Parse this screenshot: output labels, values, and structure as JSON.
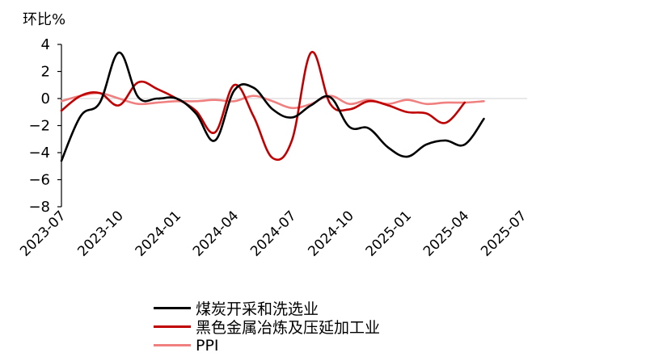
{
  "chart_data": {
    "type": "line",
    "ylabel": "环比%",
    "ylim": [
      -8,
      4
    ],
    "yticks": [
      4,
      2,
      0,
      -2,
      -4,
      -6,
      -8
    ],
    "ytick_labels": [
      "4",
      "2",
      "0",
      "−2",
      "−4",
      "−6",
      "−8"
    ],
    "categories": [
      "2023-07",
      "2023-08",
      "2023-09",
      "2023-10",
      "2023-11",
      "2023-12",
      "2024-01",
      "2024-02",
      "2024-03",
      "2024-04",
      "2024-05",
      "2024-06",
      "2024-07",
      "2024-08",
      "2024-09",
      "2024-10",
      "2024-11",
      "2024-12",
      "2025-01",
      "2025-02",
      "2025-03",
      "2025-04",
      "2025-05",
      "2025-06",
      "2025-07"
    ],
    "xtick_labels": [
      "2023-07",
      "2023-10",
      "2024-01",
      "2024-04",
      "2024-07",
      "2024-10",
      "2025-01",
      "2025-04",
      "2025-07"
    ],
    "grid": false,
    "legend_position": "bottom",
    "series": [
      {
        "name": "煤炭开采和洗选业",
        "color": "#000000",
        "values": [
          -4.6,
          -1.3,
          -0.3,
          3.4,
          0.1,
          0.0,
          0.0,
          -1.1,
          -3.1,
          0.6,
          0.8,
          -0.8,
          -1.4,
          -0.5,
          0.1,
          -2.1,
          -2.2,
          -3.6,
          -4.3,
          -3.4,
          -3.1,
          -3.4,
          -1.5,
          null,
          null
        ]
      },
      {
        "name": "黑色金属冶炼及压延加工业",
        "color": "#c00000",
        "values": [
          -0.9,
          0.2,
          0.4,
          -0.5,
          1.2,
          0.7,
          0.0,
          -0.9,
          -2.5,
          1.0,
          -1.3,
          -4.4,
          -3.1,
          3.4,
          -0.4,
          -0.8,
          -0.2,
          -0.5,
          -1.0,
          -1.1,
          -1.8,
          -0.3,
          null,
          null,
          null
        ]
      },
      {
        "name": "PPI",
        "color": "#f08080",
        "values": [
          -0.2,
          0.2,
          0.4,
          0.0,
          -0.4,
          -0.3,
          -0.2,
          -0.2,
          -0.1,
          -0.2,
          0.2,
          -0.2,
          -0.7,
          -0.4,
          0.2,
          -0.4,
          -0.1,
          -0.4,
          -0.1,
          -0.4,
          -0.3,
          -0.3,
          -0.2,
          null,
          null
        ]
      }
    ]
  }
}
